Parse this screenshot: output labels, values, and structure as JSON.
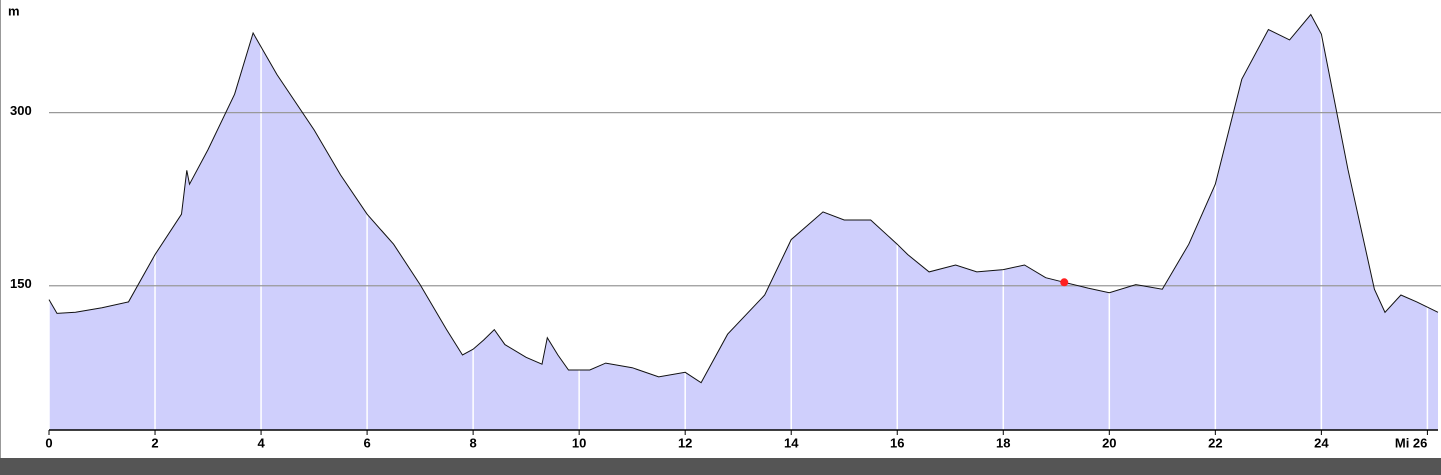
{
  "chart_data": {
    "type": "area",
    "y_label": "m",
    "x": [
      0,
      0.15,
      0.5,
      1,
      1.5,
      2,
      2.5,
      2.6,
      2.65,
      3,
      3.5,
      3.85,
      4.3,
      5,
      5.5,
      6,
      6.5,
      7,
      7.5,
      7.8,
      8,
      8.2,
      8.4,
      8.6,
      9,
      9.3,
      9.4,
      9.6,
      9.8,
      10.2,
      10.5,
      11,
      11.5,
      12,
      12.3,
      12.8,
      13.5,
      14,
      14.6,
      15,
      15.5,
      16,
      16.2,
      16.6,
      17.1,
      17.5,
      18,
      18.4,
      18.8,
      19.15,
      19.6,
      20,
      20.5,
      21,
      21.5,
      22,
      22.5,
      23,
      23.4,
      23.8,
      24,
      24.5,
      25,
      25.2,
      25.5,
      25.8,
      26.2
    ],
    "values": [
      138,
      126,
      127,
      131,
      136,
      177,
      212,
      250,
      238,
      268,
      316,
      369,
      333,
      285,
      246,
      212,
      186,
      151,
      112,
      90,
      95,
      103,
      112,
      99,
      88,
      82,
      105,
      90,
      77,
      77,
      83,
      79,
      71,
      75,
      66,
      108,
      142,
      190,
      214,
      207,
      207,
      186,
      177,
      162,
      168,
      162,
      164,
      168,
      157,
      153,
      148,
      144,
      151,
      147,
      186,
      238,
      329,
      372,
      363,
      385,
      368,
      251,
      147,
      127,
      142,
      136,
      127
    ],
    "color": "#cfcffc",
    "marker": {
      "x": 19.15,
      "value": 153,
      "color": "#ff2020"
    },
    "xlim": [
      0,
      26.2
    ],
    "ylim": [
      25,
      395
    ],
    "xticks": [
      0,
      2,
      4,
      6,
      8,
      10,
      12,
      14,
      16,
      18,
      20,
      22,
      24,
      {
        "value": 26,
        "label": "Mi 26"
      }
    ],
    "yticks": [
      150,
      300
    ],
    "grid": true
  }
}
